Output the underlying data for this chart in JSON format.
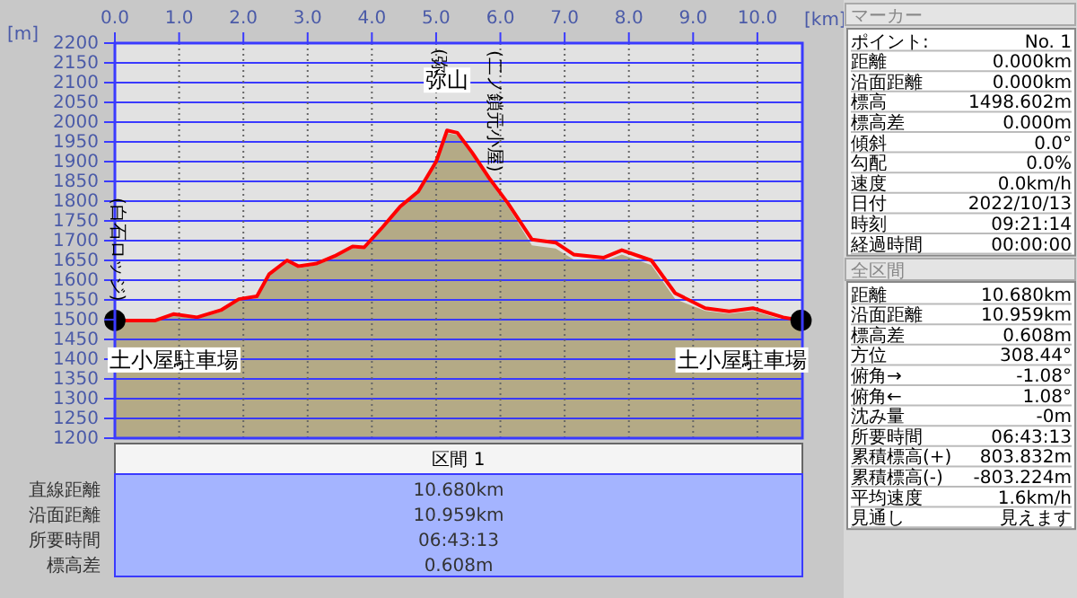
{
  "chart_data": {
    "type": "area",
    "xlabel": "[km]",
    "ylabel": "[m]",
    "x": [
      0,
      0.63,
      0.91,
      1.28,
      1.65,
      1.93,
      2.21,
      2.4,
      2.68,
      2.86,
      3.14,
      3.42,
      3.7,
      3.88,
      4.16,
      4.44,
      4.72,
      5.0,
      5.17,
      5.33,
      5.56,
      5.84,
      6.12,
      6.49,
      6.86,
      7.14,
      7.61,
      7.89,
      8.35,
      8.72,
      9.19,
      9.56,
      9.93,
      10.4,
      10.68
    ],
    "series": [
      {
        "color": "#b4aa86",
        "values": [
          1495,
          1495,
          1510,
          1503,
          1520,
          1548,
          1555,
          1610,
          1645,
          1630,
          1638,
          1657,
          1680,
          1679,
          1728,
          1780,
          1818,
          1895,
          1972,
          1967,
          1917,
          1848,
          1786,
          1688,
          1680,
          1652,
          1648,
          1665,
          1638,
          1552,
          1522,
          1515,
          1522,
          1500,
          1495
        ]
      },
      {
        "type": "line",
        "color": "#ff0000",
        "values": [
          1498,
          1498,
          1514,
          1506,
          1524,
          1552,
          1559,
          1615,
          1650,
          1635,
          1642,
          1661,
          1685,
          1683,
          1733,
          1786,
          1824,
          1900,
          1979,
          1973,
          1923,
          1855,
          1794,
          1703,
          1695,
          1665,
          1657,
          1676,
          1650,
          1567,
          1529,
          1521,
          1529,
          1506,
          1498
        ]
      },
      {
        "type": "scatter",
        "color": "#000000",
        "marker": "circle",
        "x": [
          0,
          10.68
        ],
        "values": [
          1498,
          1498
        ]
      }
    ],
    "xlim": [
      0,
      10.7
    ],
    "ylim": [
      1200,
      2200
    ],
    "xticks": [
      {
        "value": 0,
        "label": "0.0"
      },
      {
        "value": 1,
        "label": "1.0"
      },
      {
        "value": 2,
        "label": "2.0"
      },
      {
        "value": 3,
        "label": "3.0"
      },
      {
        "value": 4,
        "label": "4.0"
      },
      {
        "value": 5,
        "label": "5.0"
      },
      {
        "value": 6,
        "label": "6.0"
      },
      {
        "value": 7,
        "label": "7.0"
      },
      {
        "value": 8,
        "label": "8.0"
      },
      {
        "value": 9,
        "label": "9.0"
      },
      {
        "value": 10,
        "label": "10.0"
      }
    ],
    "yticks": [
      1200,
      1250,
      1300,
      1350,
      1400,
      1450,
      1500,
      1550,
      1600,
      1650,
      1700,
      1750,
      1800,
      1850,
      1900,
      1950,
      2000,
      2050,
      2100,
      2150,
      2200
    ],
    "grid": true,
    "annotations": [
      {
        "text": "土小屋駐車場",
        "x": 0,
        "y": 1498
      },
      {
        "text": "弥山",
        "x": 5.17,
        "y": 1979
      },
      {
        "text": "土小屋駐車場",
        "x": 10.68,
        "y": 1498
      },
      "(白石ロッジ)",
      "(二ノ鎖元小屋)",
      "(弥",
      "マーカー",
      "ポイント:",
      "No. 1",
      "距離",
      "0.000km",
      "沿面距離",
      "0.000km",
      "標高",
      "1498.602m",
      "標高差",
      "0.000m",
      "傾斜",
      "0.0°",
      "勾配",
      "0.0%",
      "速度",
      "0.0km/h",
      "日付",
      "2022/10/13",
      "時刻",
      "09:21:14",
      "経過時間",
      "00:00:00",
      "全区間",
      "距離",
      "10.680km",
      "沿面距離",
      "10.959km",
      "標高差",
      "0.608m",
      "方位",
      "308.44°",
      "俯角→",
      "-1.08°",
      "俯角←",
      "1.08°",
      "沈み量",
      "-0m",
      "所要時間",
      "06:43:13",
      "累積標高(+)",
      "803.832m",
      "累積標高(-)",
      "-803.224m",
      "平均速度",
      "1.6km/h",
      "見通し",
      "見えます",
      "区間 1",
      "直線距離",
      "10.680km",
      "沿面距離",
      "10.959km",
      "所要時間",
      "06:43:13",
      "標高差",
      "0.608m"
    ]
  }
}
